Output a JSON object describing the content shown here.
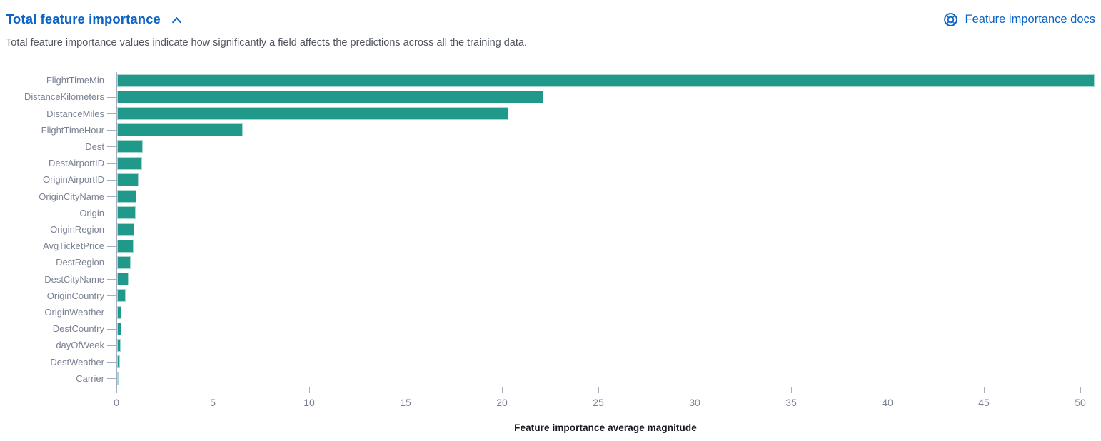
{
  "header": {
    "title": "Total feature importance",
    "collapse_icon": "chevron-up-icon",
    "docs_link": {
      "icon": "lifebuoy-icon",
      "label": "Feature importance docs"
    }
  },
  "description": "Total feature importance values indicate how significantly a field affects the predictions across all the training data.",
  "colors": {
    "bar_fill": "#21998a",
    "bar_border": "#a9d8cf",
    "link_blue": "#0b63c5",
    "axis_line": "#a5aec2",
    "category_label_text": "#7a8294",
    "tick_label_text": "#7a8294",
    "axis_title_text": "#16191f",
    "description_text": "#515560"
  },
  "chart_data": {
    "type": "bar",
    "orientation": "horizontal",
    "title": "Total feature importance",
    "xlabel": "Feature importance average magnitude",
    "ylabel": "",
    "xlim": [
      0,
      50
    ],
    "xticks": [
      0,
      5,
      10,
      15,
      20,
      25,
      30,
      35,
      40,
      45,
      50
    ],
    "grid": false,
    "legend": "none",
    "categories": [
      "FlightTimeMin",
      "DistanceKilometers",
      "DistanceMiles",
      "FlightTimeHour",
      "Dest",
      "DestAirportID",
      "OriginAirportID",
      "OriginCityName",
      "Origin",
      "OriginRegion",
      "AvgTicketPrice",
      "DestRegion",
      "DestCityName",
      "OriginCountry",
      "OriginWeather",
      "DestCountry",
      "dayOfWeek",
      "DestWeather",
      "Carrier"
    ],
    "values": [
      50.7,
      22.1,
      20.3,
      6.5,
      1.35,
      1.3,
      1.1,
      1.0,
      0.95,
      0.9,
      0.85,
      0.7,
      0.6,
      0.45,
      0.22,
      0.21,
      0.2,
      0.16,
      0.06
    ]
  }
}
